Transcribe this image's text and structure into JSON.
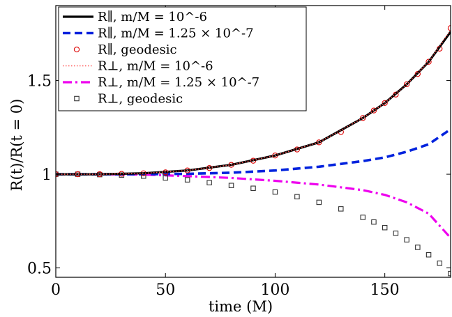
{
  "chart_data": {
    "type": "line",
    "xlabel": "time (M)",
    "ylabel": "R(t)/R(t = 0)",
    "xlim": [
      0,
      180
    ],
    "ylim": [
      0.45,
      1.9
    ],
    "xticks": [
      0,
      50,
      100,
      150
    ],
    "yticks": [
      0.5,
      1,
      1.5
    ],
    "xtick_labels": [
      "0",
      "50",
      "100",
      "150"
    ],
    "ytick_labels": [
      "0.5",
      "1",
      "1.5"
    ],
    "legend_position": "top-left",
    "series": [
      {
        "name": "R∥, m/M = 10^-6",
        "color": "#000000",
        "style": "solid",
        "x": [
          0,
          20,
          40,
          60,
          80,
          100,
          120,
          140,
          150,
          160,
          170,
          180
        ],
        "y": [
          1.0,
          1.0,
          1.005,
          1.02,
          1.05,
          1.1,
          1.17,
          1.3,
          1.38,
          1.48,
          1.6,
          1.76
        ]
      },
      {
        "name": "R∥, m/M = 1.25 × 10^-7",
        "color": "#0022dd",
        "style": "dashed",
        "x": [
          0,
          20,
          40,
          60,
          80,
          100,
          120,
          140,
          150,
          160,
          170,
          180
        ],
        "y": [
          1.0,
          1.0,
          1.0,
          1.002,
          1.008,
          1.02,
          1.04,
          1.07,
          1.09,
          1.12,
          1.16,
          1.24
        ]
      },
      {
        "name": "R∥, geodesic",
        "color": "#dd0000",
        "style": "circles",
        "x": [
          0,
          10,
          20,
          30,
          40,
          50,
          60,
          70,
          80,
          90,
          100,
          110,
          120,
          130,
          140,
          145,
          150,
          155,
          160,
          165,
          170,
          175,
          180
        ],
        "y": [
          1.0,
          1.0,
          1.0,
          1.002,
          1.005,
          1.01,
          1.02,
          1.033,
          1.05,
          1.072,
          1.1,
          1.132,
          1.17,
          1.225,
          1.3,
          1.34,
          1.38,
          1.425,
          1.48,
          1.535,
          1.6,
          1.67,
          1.78
        ]
      },
      {
        "name": "R⊥, m/M = 10^-6",
        "color": "#ff5555",
        "style": "dotted",
        "x": [
          0,
          20,
          40,
          60,
          80,
          100,
          120,
          140,
          150,
          160,
          170,
          180
        ],
        "y": [
          1.0,
          1.0,
          1.005,
          1.02,
          1.05,
          1.1,
          1.17,
          1.3,
          1.38,
          1.48,
          1.6,
          1.77
        ]
      },
      {
        "name": "R⊥, m/M = 1.25 × 10^-7",
        "color": "#ee00ee",
        "style": "dashdot",
        "x": [
          0,
          20,
          40,
          60,
          80,
          100,
          120,
          140,
          150,
          160,
          170,
          180
        ],
        "y": [
          1.0,
          1.0,
          0.998,
          0.99,
          0.98,
          0.965,
          0.945,
          0.915,
          0.89,
          0.85,
          0.79,
          0.66
        ]
      },
      {
        "name": "R⊥, geodesic",
        "color": "#333333",
        "style": "squares",
        "x": [
          0,
          10,
          20,
          30,
          40,
          50,
          60,
          70,
          80,
          90,
          100,
          110,
          120,
          130,
          140,
          145,
          150,
          155,
          160,
          165,
          170,
          175,
          180
        ],
        "y": [
          1.0,
          1.0,
          0.998,
          0.995,
          0.99,
          0.98,
          0.97,
          0.955,
          0.94,
          0.925,
          0.905,
          0.88,
          0.85,
          0.815,
          0.77,
          0.745,
          0.715,
          0.685,
          0.65,
          0.61,
          0.57,
          0.525,
          0.47
        ]
      }
    ]
  }
}
